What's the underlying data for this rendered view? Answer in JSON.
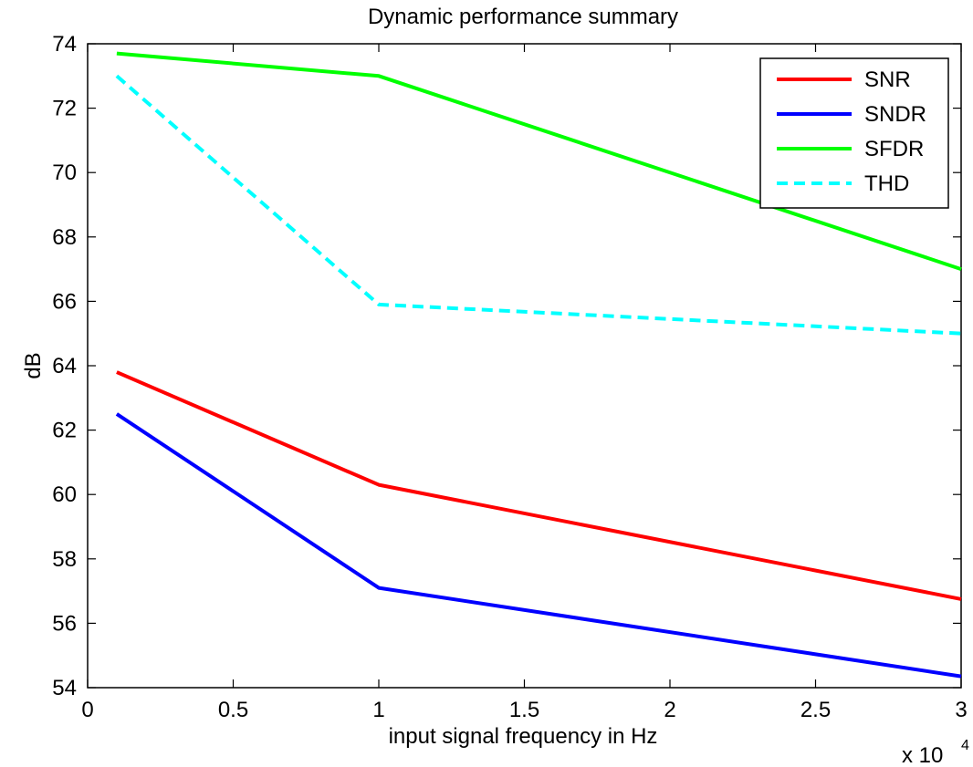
{
  "chart_data": {
    "type": "line",
    "title": "Dynamic performance summary",
    "xlabel": "input signal frequency in Hz",
    "ylabel": "dB",
    "x_multiplier_base": "x 10",
    "x_multiplier_exp": "4",
    "xlim": [
      0,
      3
    ],
    "ylim": [
      54,
      74
    ],
    "xticks": [
      0,
      0.5,
      1,
      1.5,
      2,
      2.5,
      3
    ],
    "xtick_labels": [
      "0",
      "0.5",
      "1",
      "1.5",
      "2",
      "2.5",
      "3"
    ],
    "yticks": [
      54,
      56,
      58,
      60,
      62,
      64,
      66,
      68,
      70,
      72,
      74
    ],
    "ytick_labels": [
      "54",
      "56",
      "58",
      "60",
      "62",
      "64",
      "66",
      "68",
      "70",
      "72",
      "74"
    ],
    "grid": false,
    "legend_position": "top-right",
    "x": [
      0.1,
      1,
      3
    ],
    "series": [
      {
        "name": "SNR",
        "values": [
          63.8,
          60.3,
          56.75
        ],
        "color": "#ff0000",
        "dashed": false
      },
      {
        "name": "SNDR",
        "values": [
          62.5,
          57.1,
          54.35
        ],
        "color": "#0000ff",
        "dashed": false
      },
      {
        "name": "SFDR",
        "values": [
          73.7,
          73.0,
          67.0
        ],
        "color": "#00ff00",
        "dashed": false
      },
      {
        "name": "THD",
        "values": [
          73.0,
          65.9,
          65.0
        ],
        "color": "#00ffff",
        "dashed": true
      }
    ]
  }
}
